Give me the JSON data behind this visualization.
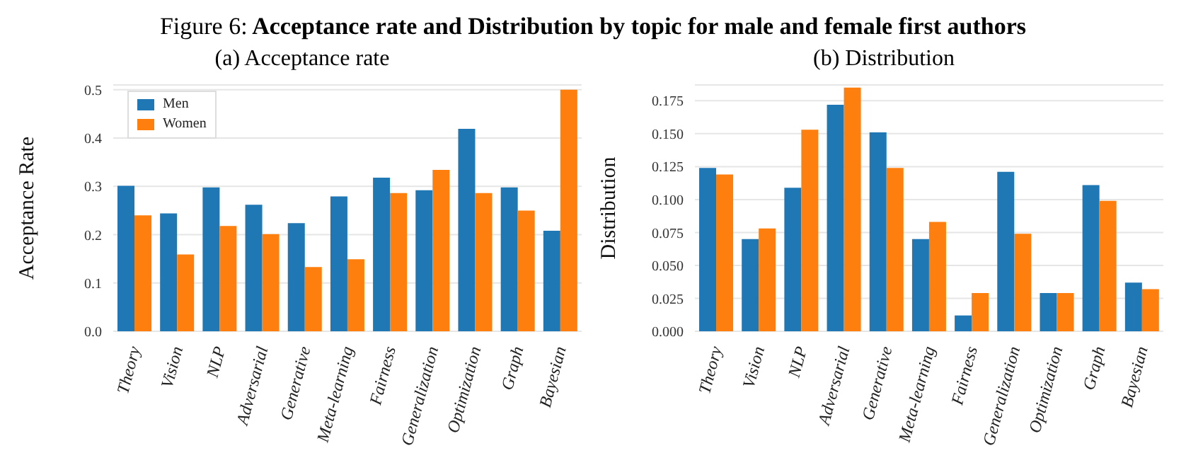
{
  "chart_data": [
    {
      "type": "bar",
      "title": "Figure 6: Acceptance rate and Distribution by topic for male and female first authors",
      "subtitle": "(a) Acceptance rate",
      "ylabel": "Acceptance Rate",
      "categories": [
        "Theory",
        "Vision",
        "NLP",
        "Adversarial",
        "Generative",
        "Meta-learning",
        "Fairness",
        "Generalization",
        "Optimization",
        "Graph",
        "Bayesian"
      ],
      "series": [
        {
          "name": "Men",
          "color": "#1f77b4",
          "values": [
            0.301,
            0.244,
            0.298,
            0.262,
            0.224,
            0.279,
            0.318,
            0.292,
            0.419,
            0.298,
            0.208
          ]
        },
        {
          "name": "Women",
          "color": "#ff7f0e",
          "values": [
            0.24,
            0.159,
            0.218,
            0.201,
            0.133,
            0.149,
            0.286,
            0.334,
            0.286,
            0.25,
            0.5
          ]
        }
      ],
      "ylim": [
        0,
        0.51
      ],
      "yticks": [
        {
          "value": 0,
          "label": "0.0"
        },
        {
          "value": 0.1,
          "label": "0.1"
        },
        {
          "value": 0.2,
          "label": "0.2"
        },
        {
          "value": 0.3,
          "label": "0.3"
        },
        {
          "value": 0.4,
          "label": "0.4"
        },
        {
          "value": 0.5,
          "label": "0.5"
        }
      ],
      "grid": "y",
      "legend": "top left"
    },
    {
      "type": "bar",
      "title": "(b) Distribution",
      "ylabel": "Distribution",
      "categories": [
        "Theory",
        "Vision",
        "NLP",
        "Adversarial",
        "Generative",
        "Meta-learning",
        "Fairness",
        "Generalization",
        "Optimization",
        "Graph",
        "Bayesian"
      ],
      "series": [
        {
          "color": "#1f77b4",
          "values": [
            0.124,
            0.07,
            0.109,
            0.172,
            0.151,
            0.07,
            0.012,
            0.121,
            0.029,
            0.111,
            0.037
          ]
        },
        {
          "color": "#ff7f0e",
          "values": [
            0.119,
            0.078,
            0.153,
            0.185,
            0.124,
            0.083,
            0.029,
            0.074,
            0.029,
            0.099,
            0.032
          ]
        }
      ],
      "ylim": [
        0,
        0.187
      ],
      "yticks": [
        {
          "value": 0,
          "label": "0.000"
        },
        {
          "value": 0.025,
          "label": "0.025"
        },
        {
          "value": 0.05,
          "label": "0.050"
        },
        {
          "value": 0.075,
          "label": "0.075"
        },
        {
          "value": 0.1,
          "label": "0.100"
        },
        {
          "value": 0.125,
          "label": "0.125"
        },
        {
          "value": 0.15,
          "label": "0.150"
        },
        {
          "value": 0.175,
          "label": "0.175"
        }
      ],
      "grid": "y",
      "legend": false
    }
  ]
}
